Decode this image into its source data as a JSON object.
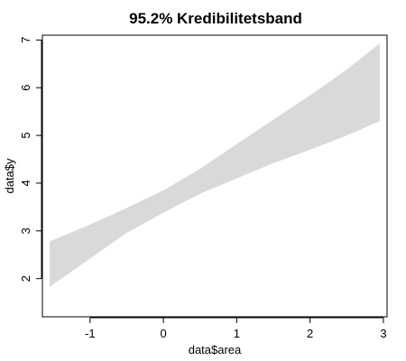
{
  "chart_data": {
    "type": "area",
    "title": "95.2% Kredibilitetsband",
    "xlabel": "data$area",
    "ylabel": "data$y",
    "xlim": [
      -1.65,
      3.05
    ],
    "ylim": [
      1.2,
      7.1
    ],
    "x_ticks": [
      -1,
      0,
      1,
      2,
      3
    ],
    "y_ticks": [
      2,
      3,
      4,
      5,
      6,
      7
    ],
    "grid": false,
    "band_color": "#d9d9d9",
    "band": {
      "x": [
        -1.55,
        -1.0,
        -0.5,
        0.0,
        0.5,
        1.0,
        1.5,
        2.0,
        2.5,
        2.95
      ],
      "lower": [
        1.83,
        2.42,
        2.96,
        3.38,
        3.78,
        4.1,
        4.42,
        4.7,
        5.0,
        5.3
      ],
      "upper": [
        2.78,
        3.13,
        3.48,
        3.85,
        4.3,
        4.82,
        5.33,
        5.84,
        6.38,
        6.93
      ]
    }
  }
}
